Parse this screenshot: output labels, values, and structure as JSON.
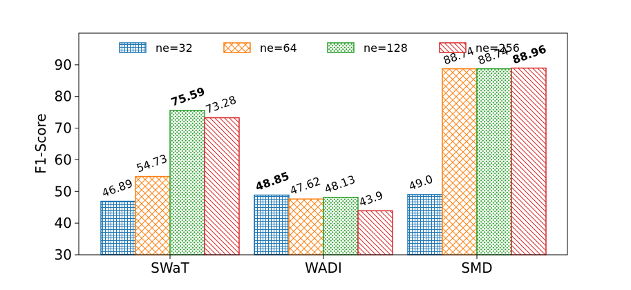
{
  "chart_data": {
    "type": "bar",
    "title": "",
    "xlabel": "",
    "ylabel": "F1-Score",
    "ylim": [
      30,
      100
    ],
    "yticks": [
      30,
      40,
      50,
      60,
      70,
      80,
      90
    ],
    "grid": false,
    "legend_position": "top",
    "categories": [
      "SWaT",
      "WADI",
      "SMD"
    ],
    "series": [
      {
        "name": "ne=32",
        "color": "#1f77b4",
        "pattern": "grid",
        "values": [
          46.89,
          48.85,
          49.0
        ],
        "labels": [
          "46.89",
          "48.85",
          "49.0"
        ],
        "bold": [
          false,
          true,
          false
        ]
      },
      {
        "name": "ne=64",
        "color": "#ff7f0e",
        "pattern": "crosshatch",
        "values": [
          54.73,
          47.62,
          88.74
        ],
        "labels": [
          "54.73",
          "47.62",
          "88.74"
        ],
        "bold": [
          false,
          false,
          false
        ]
      },
      {
        "name": "ne=128",
        "color": "#2ca02c",
        "pattern": "dots",
        "values": [
          75.59,
          48.13,
          88.74
        ],
        "labels": [
          "75.59",
          "48.13",
          "88.74"
        ],
        "bold": [
          true,
          false,
          false
        ]
      },
      {
        "name": "ne=256",
        "color": "#d62728",
        "pattern": "diagonal",
        "values": [
          73.28,
          43.9,
          88.96
        ],
        "labels": [
          "73.28",
          "43.9",
          "88.96"
        ],
        "bold": [
          false,
          false,
          true
        ]
      }
    ]
  }
}
